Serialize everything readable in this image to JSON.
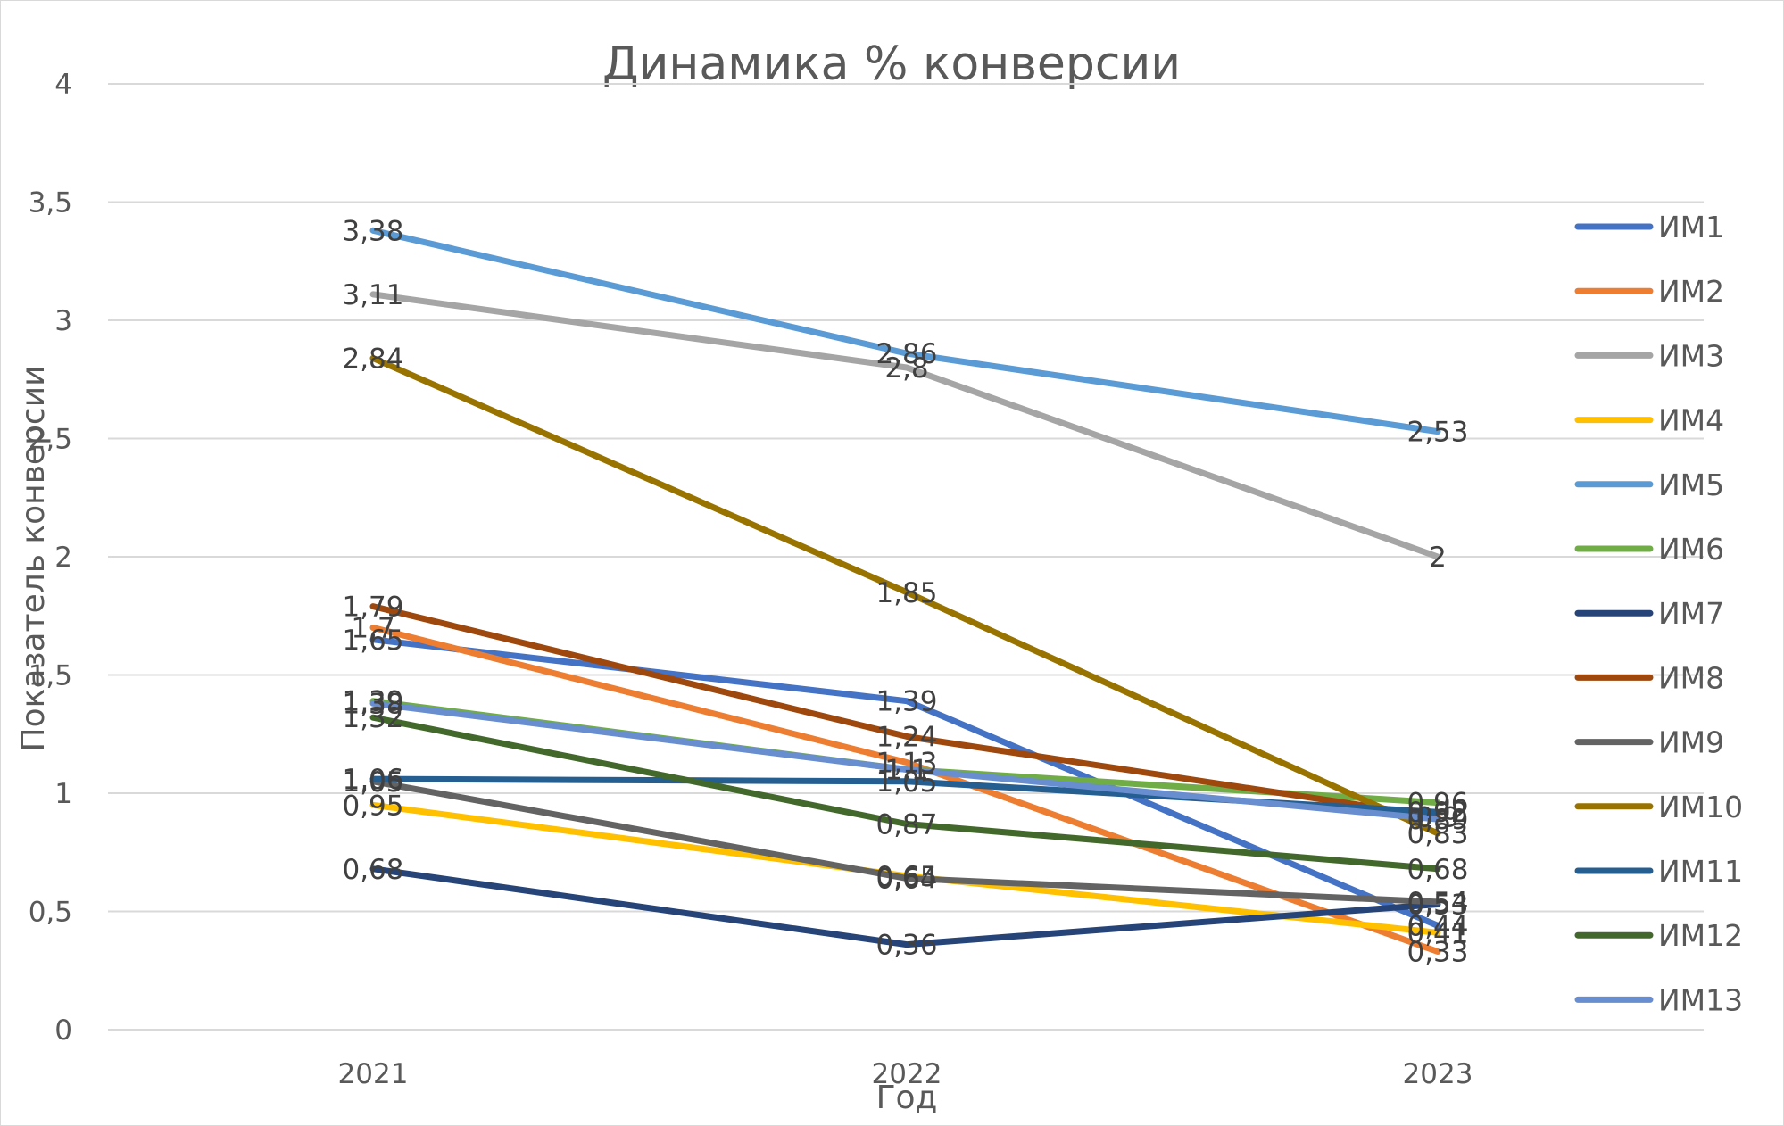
{
  "chart_data": {
    "type": "line",
    "title": "Динамика % конверсии",
    "xlabel": "Год",
    "ylabel": "Показатель конверсии",
    "categories": [
      "2021",
      "2022",
      "2023"
    ],
    "ylim": [
      0,
      4
    ],
    "y_ticks": [
      "0",
      "0,5",
      "1",
      "1,5",
      "2",
      "2,5",
      "3",
      "3,5",
      "4"
    ],
    "grid": true,
    "legend_position": "right",
    "series": [
      {
        "name": "ИМ1",
        "color": "#4472C4",
        "values": [
          1.65,
          1.39,
          0.44
        ],
        "labels": [
          "1,65",
          "1,39",
          "0,44"
        ]
      },
      {
        "name": "ИМ2",
        "color": "#ED7D31",
        "values": [
          1.7,
          1.13,
          0.33
        ],
        "labels": [
          "1,7",
          "1,13",
          "0,33"
        ]
      },
      {
        "name": "ИМ3",
        "color": "#A5A5A5",
        "values": [
          3.11,
          2.8,
          2.0
        ],
        "labels": [
          "3,11",
          "2,8",
          "2"
        ]
      },
      {
        "name": "ИМ4",
        "color": "#FFC000",
        "values": [
          0.95,
          0.65,
          0.41
        ],
        "labels": [
          "0,95",
          "0,65",
          "0,41"
        ]
      },
      {
        "name": "ИМ5",
        "color": "#5B9BD5",
        "values": [
          3.38,
          2.86,
          2.53
        ],
        "labels": [
          "3,38",
          "2,86",
          "2,53"
        ]
      },
      {
        "name": "ИМ6",
        "color": "#70AD47",
        "values": [
          1.39,
          1.1,
          0.96
        ],
        "labels": [
          "1,39",
          "1,1",
          "0,96"
        ]
      },
      {
        "name": "ИМ7",
        "color": "#264478",
        "values": [
          0.68,
          0.36,
          0.53
        ],
        "labels": [
          "0,68",
          "0,36",
          "0,53"
        ]
      },
      {
        "name": "ИМ8",
        "color": "#9E480E",
        "values": [
          1.79,
          1.24,
          0.9
        ],
        "labels": [
          "1,79",
          "1,24",
          "0,9"
        ]
      },
      {
        "name": "ИМ9",
        "color": "#636363",
        "values": [
          1.05,
          0.64,
          0.54
        ],
        "labels": [
          "1,05",
          "0,64",
          "0,54"
        ]
      },
      {
        "name": "ИМ10",
        "color": "#997300",
        "values": [
          2.84,
          1.85,
          0.83
        ],
        "labels": [
          "2,84",
          "1,85",
          "0,83"
        ]
      },
      {
        "name": "ИМ11",
        "color": "#255E91",
        "values": [
          1.06,
          1.05,
          0.92
        ],
        "labels": [
          "1,06",
          "1,05",
          "0,92"
        ]
      },
      {
        "name": "ИМ12",
        "color": "#43682B",
        "values": [
          1.32,
          0.87,
          0.68
        ],
        "labels": [
          "1,32",
          "0,87",
          "0,68"
        ]
      },
      {
        "name": "ИМ13",
        "color": "#698ED0",
        "values": [
          1.38,
          1.1,
          0.89
        ],
        "labels": [
          "1,38",
          "1,1",
          "0,89"
        ]
      }
    ]
  }
}
